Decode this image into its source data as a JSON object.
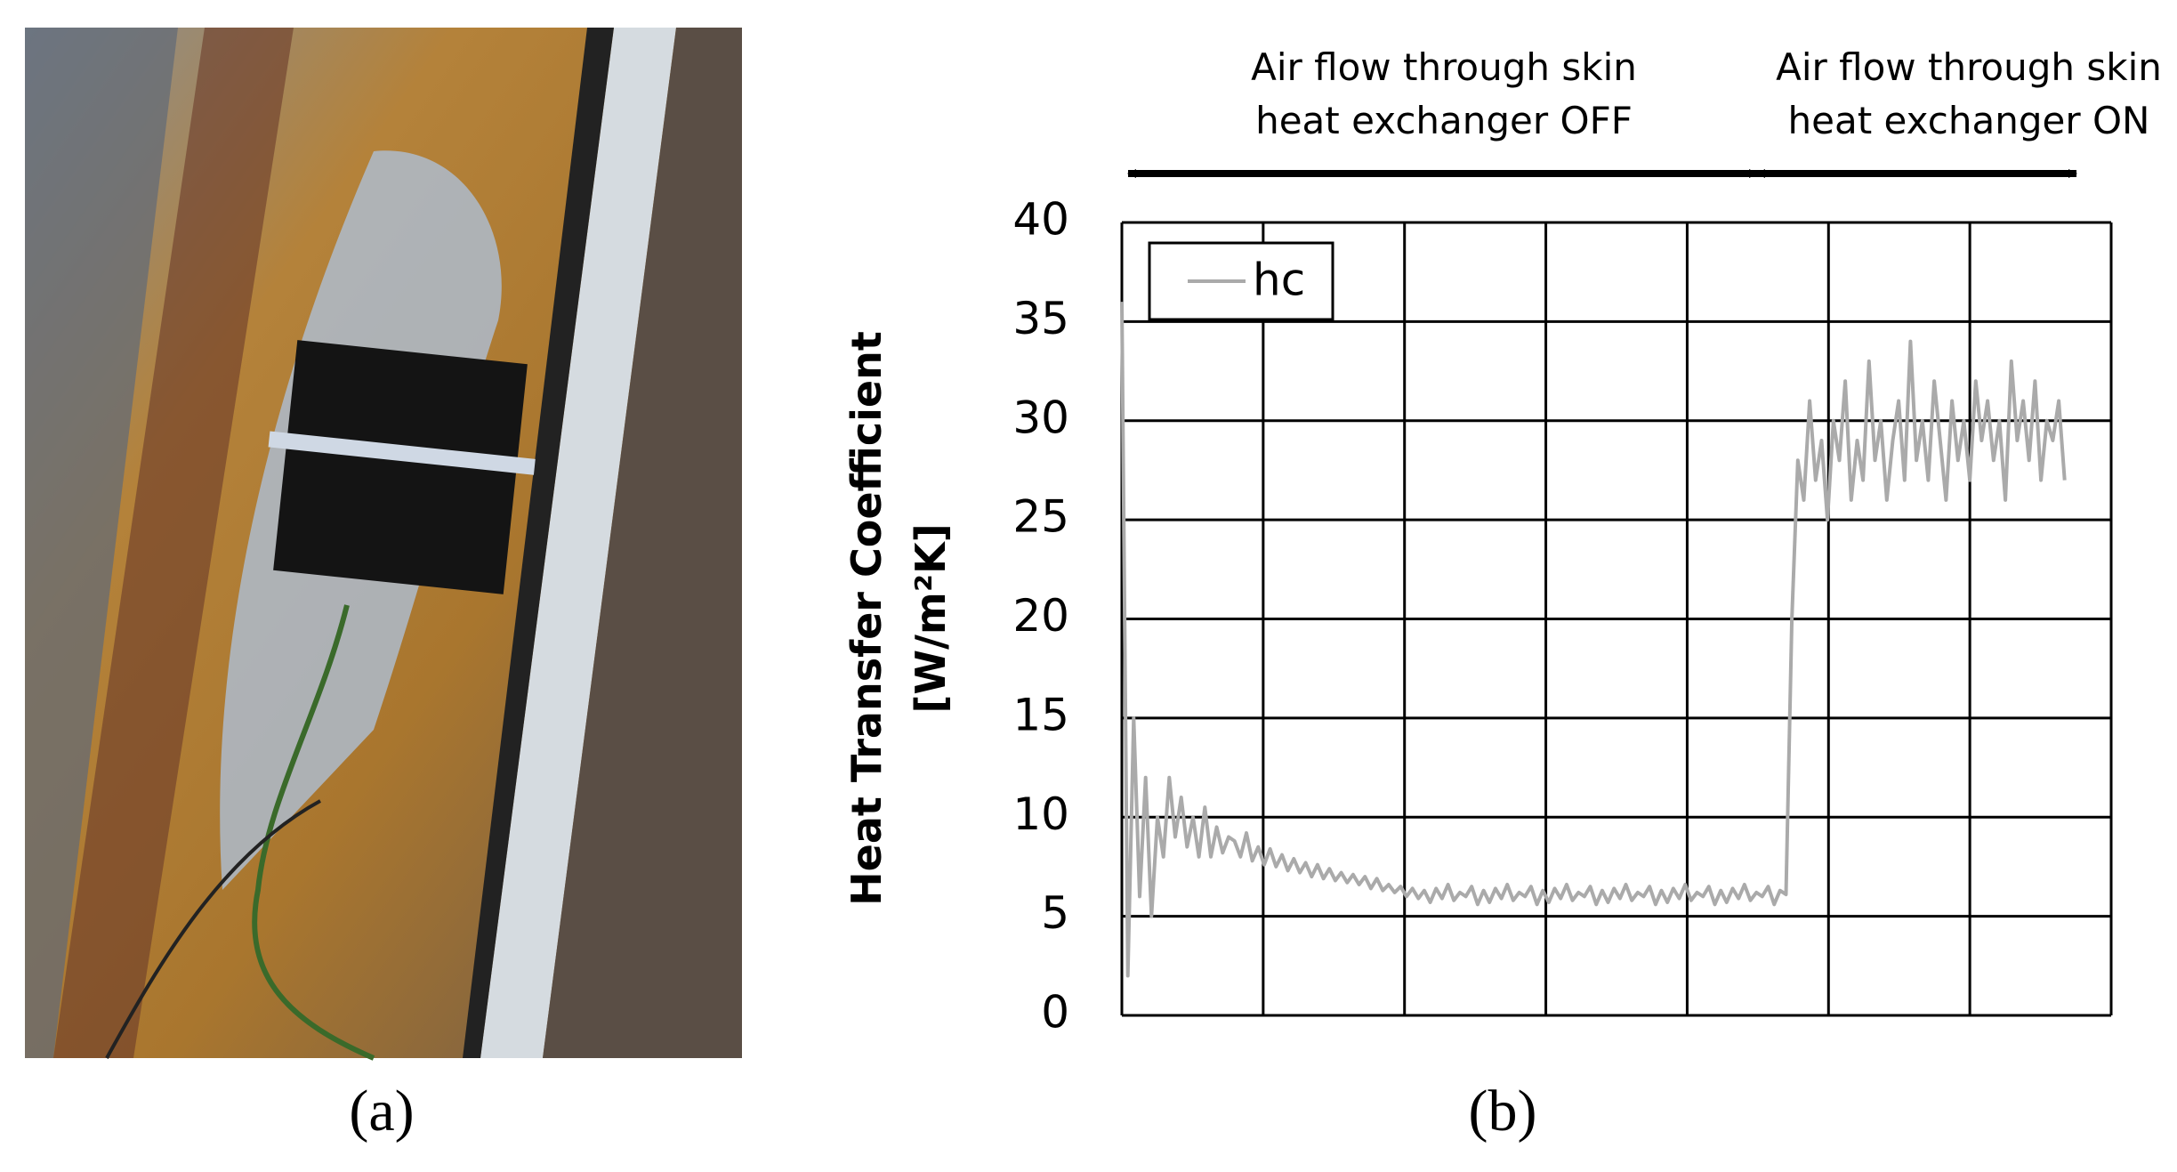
{
  "panel_labels": [
    "(a)",
    "(b)"
  ],
  "chart_data": {
    "type": "line",
    "y_label": [
      "Heat Transfer Coefficient",
      "[W/m²K]"
    ],
    "annotations": [
      [
        "Air flow through skin",
        "heat exchanger OFF"
      ],
      [
        "Air flow through skin",
        "heat exchanger ON"
      ]
    ],
    "ylim": [
      0,
      40
    ],
    "yticks": [
      0,
      5,
      10,
      15,
      20,
      25,
      30,
      35,
      40
    ],
    "grid": true,
    "legend": "upper left",
    "series": [
      {
        "name": "hc",
        "color": "#aaaaaa",
        "values": [
          36,
          2,
          15,
          6,
          12,
          5,
          10,
          8,
          12,
          9,
          11,
          8.5,
          10,
          8,
          10.5,
          8,
          9.5,
          8.2,
          9,
          8.8,
          8,
          9.2,
          7.8,
          8.5,
          7.6,
          8.4,
          7.5,
          8.1,
          7.3,
          7.9,
          7.2,
          7.7,
          7,
          7.6,
          6.9,
          7.4,
          6.8,
          7.2,
          6.7,
          7.1,
          6.6,
          7,
          6.4,
          6.9,
          6.3,
          6.6,
          6.2,
          6.5,
          6,
          6.4,
          5.9,
          6.3,
          5.7,
          6.4,
          5.9,
          6.6,
          5.8,
          6.2,
          6,
          6.5,
          5.6,
          6.3,
          5.7,
          6.4,
          5.9,
          6.6,
          5.8,
          6.2,
          6,
          6.5,
          5.6,
          6.3,
          5.7,
          6.4,
          5.9,
          6.6,
          5.8,
          6.2,
          6,
          6.5,
          5.6,
          6.3,
          5.7,
          6.4,
          5.9,
          6.6,
          5.8,
          6.2,
          6,
          6.5,
          5.6,
          6.3,
          5.7,
          6.4,
          5.9,
          6.6,
          5.8,
          6.2,
          6,
          6.5,
          5.6,
          6.3,
          5.7,
          6.4,
          5.9,
          6.6,
          5.8,
          6.2,
          6,
          6.5,
          5.6,
          6.3,
          6.1,
          20,
          28,
          26,
          31,
          27,
          29,
          25,
          30,
          28,
          32,
          26,
          29,
          27,
          33,
          28,
          30,
          26,
          29,
          31,
          27,
          34,
          28,
          30,
          27,
          32,
          29,
          26,
          31,
          28,
          30,
          27,
          32,
          29,
          31,
          28,
          30,
          26,
          33,
          29,
          31,
          28,
          32,
          27,
          30,
          29,
          31,
          27
        ]
      }
    ]
  }
}
